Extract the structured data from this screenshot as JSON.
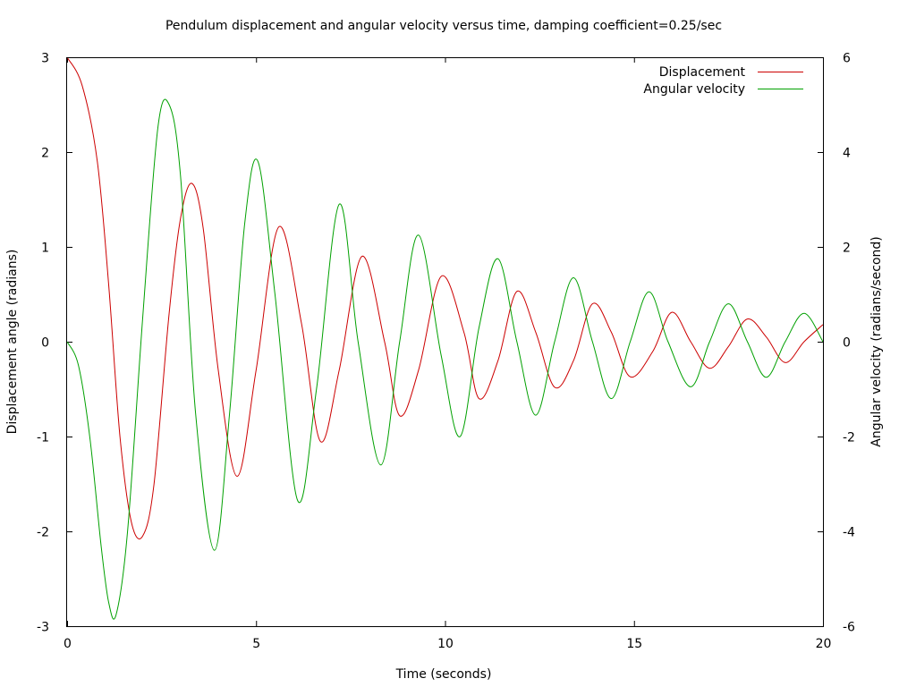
{
  "chart_data": {
    "type": "line",
    "title": "Pendulum displacement and angular velocity versus time, damping coefficient=0.25/sec",
    "xlabel": "Time (seconds)",
    "ylabel": "Displacement angle (radians)",
    "y2label": "Angular velocity (radians/second)",
    "xlim": [
      0,
      20
    ],
    "ylim": [
      -3,
      3
    ],
    "y2lim": [
      -6,
      6
    ],
    "xticks": [
      "0",
      "5",
      "10",
      "15",
      "20"
    ],
    "yticks": [
      "-3",
      "-2",
      "-1",
      "0",
      "1",
      "2",
      "3"
    ],
    "y2ticks": [
      "-6",
      "-4",
      "-2",
      "0",
      "2",
      "4",
      "6"
    ],
    "grid": false,
    "legend_position": "top-right",
    "colors": {
      "Displacement": "#cc0000",
      "Angular velocity": "#00a000"
    },
    "series": [
      {
        "name": "Displacement",
        "axis": "left",
        "x": [
          0,
          0.4,
          0.8,
          1.1,
          1.4,
          1.7,
          2.0,
          2.3,
          2.7,
          3.0,
          3.3,
          3.6,
          4.0,
          4.5,
          5.0,
          5.6,
          6.2,
          6.7,
          7.2,
          7.8,
          8.4,
          8.8,
          9.3,
          9.9,
          10.5,
          10.9,
          11.4,
          11.9,
          12.4,
          12.9,
          13.4,
          13.9,
          14.4,
          14.9,
          15.5,
          16.0,
          16.5,
          17.0,
          17.5,
          18.0,
          18.5,
          19.0,
          19.5,
          20.0
        ],
        "y": [
          3.0,
          2.7,
          1.9,
          0.6,
          -1.0,
          -1.9,
          -2.05,
          -1.5,
          0.3,
          1.3,
          1.67,
          1.2,
          -0.3,
          -1.42,
          -0.3,
          1.21,
          0.2,
          -1.05,
          -0.3,
          0.9,
          0.0,
          -0.78,
          -0.3,
          0.69,
          0.1,
          -0.6,
          -0.2,
          0.53,
          0.1,
          -0.48,
          -0.2,
          0.4,
          0.1,
          -0.37,
          -0.1,
          0.31,
          0.0,
          -0.28,
          -0.05,
          0.24,
          0.05,
          -0.22,
          0.0,
          0.18
        ]
      },
      {
        "name": "Angular velocity",
        "axis": "right",
        "x": [
          0,
          0.3,
          0.6,
          0.9,
          1.1,
          1.3,
          1.6,
          2.0,
          2.4,
          2.7,
          3.0,
          3.4,
          3.9,
          4.3,
          4.7,
          5.05,
          5.5,
          6.1,
          6.6,
          7.2,
          7.7,
          8.3,
          8.8,
          9.3,
          9.9,
          10.4,
          10.9,
          11.4,
          11.9,
          12.4,
          12.9,
          13.4,
          13.9,
          14.4,
          14.9,
          15.4,
          15.9,
          16.5,
          17.0,
          17.5,
          18.0,
          18.5,
          19.0,
          19.5,
          20.0
        ],
        "y": [
          0.0,
          -0.5,
          -2.0,
          -4.3,
          -5.5,
          -5.75,
          -4.0,
          0.5,
          4.5,
          5.0,
          3.5,
          -1.5,
          -4.4,
          -1.5,
          2.5,
          3.8,
          1.0,
          -3.35,
          -1.0,
          2.9,
          0.0,
          -2.6,
          0.0,
          2.25,
          -0.3,
          -2.0,
          0.3,
          1.75,
          0.0,
          -1.55,
          0.0,
          1.35,
          0.0,
          -1.2,
          0.0,
          1.05,
          0.0,
          -0.95,
          0.0,
          0.8,
          0.0,
          -0.75,
          0.0,
          0.6,
          0.0
        ]
      }
    ]
  }
}
